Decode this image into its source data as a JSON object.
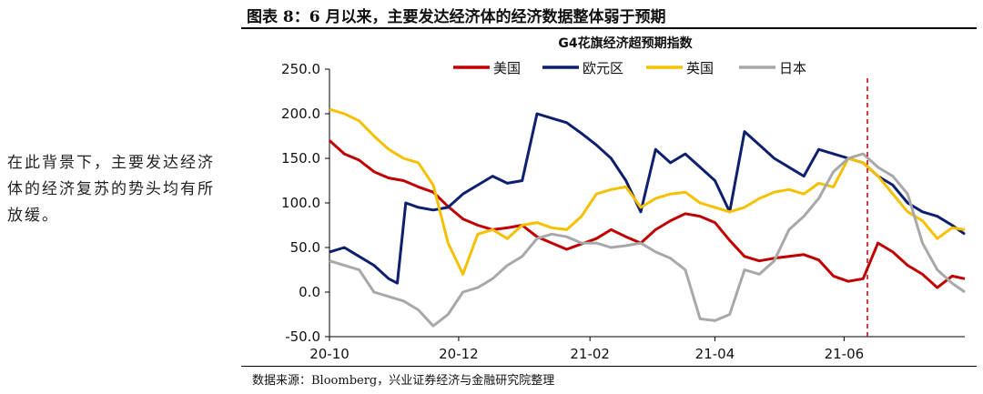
{
  "figure": {
    "title": "图表 8：6 月以来，主要发达经济体的经济数据整体弱于预期",
    "source": "数据来源：Bloomberg，兴业证券经济与金融研究院整理",
    "side_note": "在此背景下，主要发达经济体的经济复苏的势头均有所放缓。"
  },
  "chart_data": {
    "type": "line",
    "title": "G4花旗经济超预期指数",
    "xlabel": "",
    "ylabel": "",
    "x_ticks": [
      "20-10",
      "20-12",
      "21-02",
      "21-04",
      "21-06"
    ],
    "y_ticks": [
      "250.0",
      "200.0",
      "150.0",
      "100.0",
      "50.0",
      "0.0",
      "-50.0"
    ],
    "ylim": [
      -50,
      250
    ],
    "xlim": [
      "2020-10-01",
      "2021-07-28"
    ],
    "grid": false,
    "legend_position": "top",
    "annotation": {
      "type": "vertical-dashed-line",
      "x": "2021-06-12",
      "color": "#C00000"
    },
    "series": [
      {
        "name": "美国",
        "color": "#C00000",
        "points": [
          [
            "2020-10-01",
            170
          ],
          [
            "2020-10-08",
            155
          ],
          [
            "2020-10-15",
            148
          ],
          [
            "2020-10-22",
            135
          ],
          [
            "2020-10-29",
            128
          ],
          [
            "2020-11-05",
            125
          ],
          [
            "2020-11-12",
            118
          ],
          [
            "2020-11-19",
            112
          ],
          [
            "2020-11-26",
            96
          ],
          [
            "2020-12-03",
            82
          ],
          [
            "2020-12-10",
            75
          ],
          [
            "2020-12-17",
            70
          ],
          [
            "2020-12-24",
            72
          ],
          [
            "2020-12-31",
            75
          ],
          [
            "2021-01-07",
            62
          ],
          [
            "2021-01-14",
            55
          ],
          [
            "2021-01-21",
            48
          ],
          [
            "2021-01-28",
            54
          ],
          [
            "2021-02-04",
            60
          ],
          [
            "2021-02-11",
            70
          ],
          [
            "2021-02-18",
            62
          ],
          [
            "2021-02-25",
            55
          ],
          [
            "2021-03-04",
            70
          ],
          [
            "2021-03-11",
            80
          ],
          [
            "2021-03-18",
            88
          ],
          [
            "2021-03-25",
            85
          ],
          [
            "2021-04-01",
            78
          ],
          [
            "2021-04-08",
            58
          ],
          [
            "2021-04-15",
            40
          ],
          [
            "2021-04-22",
            35
          ],
          [
            "2021-04-29",
            38
          ],
          [
            "2021-05-06",
            40
          ],
          [
            "2021-05-13",
            42
          ],
          [
            "2021-05-20",
            36
          ],
          [
            "2021-05-27",
            18
          ],
          [
            "2021-06-03",
            12
          ],
          [
            "2021-06-10",
            15
          ],
          [
            "2021-06-17",
            55
          ],
          [
            "2021-06-24",
            45
          ],
          [
            "2021-07-01",
            30
          ],
          [
            "2021-07-08",
            20
          ],
          [
            "2021-07-15",
            5
          ],
          [
            "2021-07-22",
            18
          ],
          [
            "2021-07-28",
            15
          ]
        ]
      },
      {
        "name": "欧元区",
        "color": "#0D1F6E",
        "points": [
          [
            "2020-10-01",
            45
          ],
          [
            "2020-10-08",
            50
          ],
          [
            "2020-10-15",
            40
          ],
          [
            "2020-10-22",
            30
          ],
          [
            "2020-10-29",
            15
          ],
          [
            "2020-11-02",
            10
          ],
          [
            "2020-11-06",
            100
          ],
          [
            "2020-11-12",
            95
          ],
          [
            "2020-11-19",
            92
          ],
          [
            "2020-11-26",
            95
          ],
          [
            "2020-12-03",
            110
          ],
          [
            "2020-12-10",
            120
          ],
          [
            "2020-12-17",
            130
          ],
          [
            "2020-12-24",
            122
          ],
          [
            "2020-12-31",
            125
          ],
          [
            "2021-01-07",
            200
          ],
          [
            "2021-01-14",
            195
          ],
          [
            "2021-01-21",
            190
          ],
          [
            "2021-01-28",
            178
          ],
          [
            "2021-02-04",
            165
          ],
          [
            "2021-02-11",
            150
          ],
          [
            "2021-02-18",
            125
          ],
          [
            "2021-02-25",
            90
          ],
          [
            "2021-03-04",
            160
          ],
          [
            "2021-03-11",
            145
          ],
          [
            "2021-03-18",
            155
          ],
          [
            "2021-03-25",
            140
          ],
          [
            "2021-04-01",
            125
          ],
          [
            "2021-04-08",
            90
          ],
          [
            "2021-04-15",
            180
          ],
          [
            "2021-04-22",
            165
          ],
          [
            "2021-04-29",
            150
          ],
          [
            "2021-05-06",
            140
          ],
          [
            "2021-05-13",
            130
          ],
          [
            "2021-05-20",
            160
          ],
          [
            "2021-05-27",
            155
          ],
          [
            "2021-06-03",
            150
          ],
          [
            "2021-06-10",
            145
          ],
          [
            "2021-06-17",
            130
          ],
          [
            "2021-06-24",
            120
          ],
          [
            "2021-07-01",
            100
          ],
          [
            "2021-07-08",
            90
          ],
          [
            "2021-07-15",
            85
          ],
          [
            "2021-07-22",
            75
          ],
          [
            "2021-07-28",
            65
          ]
        ]
      },
      {
        "name": "英国",
        "color": "#F5C000",
        "points": [
          [
            "2020-10-01",
            205
          ],
          [
            "2020-10-08",
            200
          ],
          [
            "2020-10-15",
            192
          ],
          [
            "2020-10-22",
            175
          ],
          [
            "2020-10-29",
            160
          ],
          [
            "2020-11-05",
            150
          ],
          [
            "2020-11-12",
            145
          ],
          [
            "2020-11-19",
            120
          ],
          [
            "2020-11-26",
            55
          ],
          [
            "2020-12-03",
            20
          ],
          [
            "2020-12-10",
            65
          ],
          [
            "2020-12-17",
            70
          ],
          [
            "2020-12-24",
            60
          ],
          [
            "2020-12-31",
            75
          ],
          [
            "2021-01-07",
            78
          ],
          [
            "2021-01-14",
            72
          ],
          [
            "2021-01-21",
            70
          ],
          [
            "2021-01-28",
            85
          ],
          [
            "2021-02-04",
            110
          ],
          [
            "2021-02-11",
            115
          ],
          [
            "2021-02-18",
            118
          ],
          [
            "2021-02-25",
            95
          ],
          [
            "2021-03-04",
            105
          ],
          [
            "2021-03-11",
            110
          ],
          [
            "2021-03-18",
            112
          ],
          [
            "2021-03-25",
            100
          ],
          [
            "2021-04-01",
            95
          ],
          [
            "2021-04-08",
            90
          ],
          [
            "2021-04-15",
            95
          ],
          [
            "2021-04-22",
            105
          ],
          [
            "2021-04-29",
            112
          ],
          [
            "2021-05-06",
            115
          ],
          [
            "2021-05-13",
            110
          ],
          [
            "2021-05-20",
            122
          ],
          [
            "2021-05-27",
            118
          ],
          [
            "2021-06-03",
            150
          ],
          [
            "2021-06-10",
            145
          ],
          [
            "2021-06-17",
            130
          ],
          [
            "2021-06-24",
            110
          ],
          [
            "2021-07-01",
            90
          ],
          [
            "2021-07-08",
            80
          ],
          [
            "2021-07-15",
            60
          ],
          [
            "2021-07-22",
            72
          ],
          [
            "2021-07-28",
            70
          ]
        ]
      },
      {
        "name": "日本",
        "color": "#A8A8A8",
        "points": [
          [
            "2020-10-01",
            35
          ],
          [
            "2020-10-08",
            30
          ],
          [
            "2020-10-15",
            25
          ],
          [
            "2020-10-22",
            0
          ],
          [
            "2020-10-29",
            -5
          ],
          [
            "2020-11-05",
            -10
          ],
          [
            "2020-11-12",
            -20
          ],
          [
            "2020-11-19",
            -38
          ],
          [
            "2020-11-26",
            -25
          ],
          [
            "2020-12-03",
            0
          ],
          [
            "2020-12-10",
            5
          ],
          [
            "2020-12-17",
            15
          ],
          [
            "2020-12-24",
            30
          ],
          [
            "2020-12-31",
            40
          ],
          [
            "2021-01-07",
            60
          ],
          [
            "2021-01-14",
            65
          ],
          [
            "2021-01-21",
            62
          ],
          [
            "2021-01-28",
            55
          ],
          [
            "2021-02-04",
            55
          ],
          [
            "2021-02-11",
            50
          ],
          [
            "2021-02-18",
            52
          ],
          [
            "2021-02-25",
            55
          ],
          [
            "2021-03-04",
            45
          ],
          [
            "2021-03-11",
            38
          ],
          [
            "2021-03-18",
            25
          ],
          [
            "2021-03-25",
            -30
          ],
          [
            "2021-04-01",
            -32
          ],
          [
            "2021-04-08",
            -25
          ],
          [
            "2021-04-15",
            25
          ],
          [
            "2021-04-22",
            20
          ],
          [
            "2021-04-29",
            35
          ],
          [
            "2021-05-06",
            70
          ],
          [
            "2021-05-13",
            85
          ],
          [
            "2021-05-20",
            105
          ],
          [
            "2021-05-27",
            135
          ],
          [
            "2021-06-03",
            150
          ],
          [
            "2021-06-10",
            155
          ],
          [
            "2021-06-17",
            140
          ],
          [
            "2021-06-24",
            130
          ],
          [
            "2021-07-01",
            110
          ],
          [
            "2021-07-08",
            55
          ],
          [
            "2021-07-15",
            25
          ],
          [
            "2021-07-22",
            10
          ],
          [
            "2021-07-28",
            0
          ]
        ]
      }
    ]
  }
}
